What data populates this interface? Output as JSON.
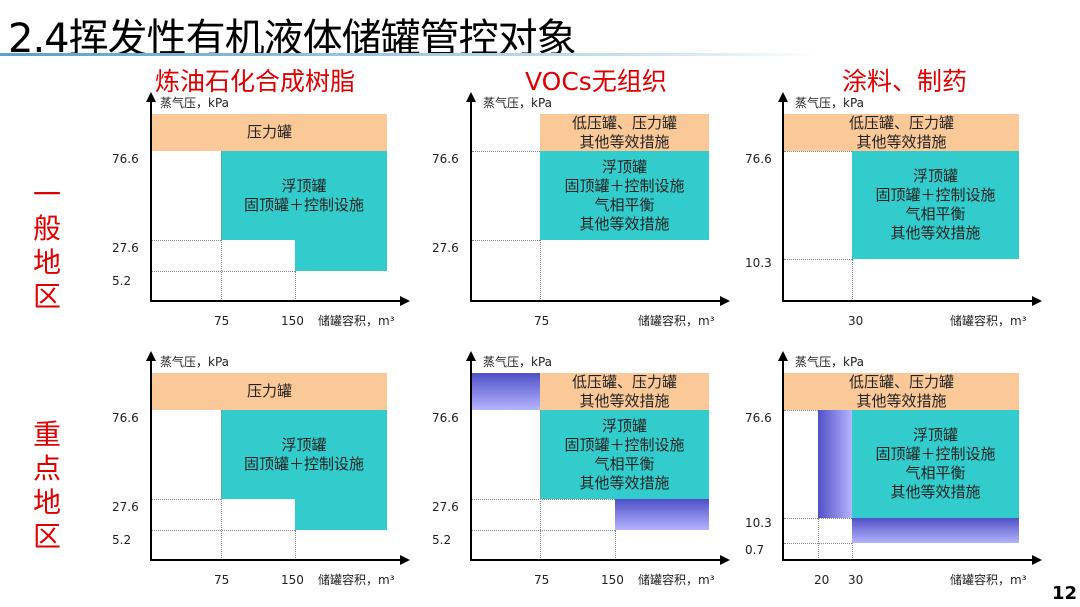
{
  "title": "2.4挥发性有机液体储罐管控对象",
  "categories": [
    "炼油石化合成树脂",
    "VOCs无组织",
    "涂料、制药"
  ],
  "regions": [
    "一般地区",
    "重点地区"
  ],
  "y_axis_label": "蒸气压，kPa",
  "x_axis_label": "储罐容积，m³",
  "zones": {
    "pressure": "压力罐",
    "low_pressure": "低压罐、压力罐\n其他等效措施",
    "float_basic": "浮顶罐\n固顶罐＋控制设施",
    "float_full": "浮顶罐\n固顶罐＋控制设施\n气相平衡\n其他等效措施"
  },
  "ticks": {
    "y76": "76.6",
    "y27": "27.6",
    "y5": "5.2",
    "y10": "10.3",
    "y07": "0.7",
    "x75": "75",
    "x150": "150",
    "x30": "30",
    "x20": "20"
  },
  "colors": {
    "pressure_zone": "#fbc898",
    "control_zone": "#33cccc",
    "extra_zone": "#6060d8",
    "heading": "#e00000"
  },
  "page_number": "12"
}
